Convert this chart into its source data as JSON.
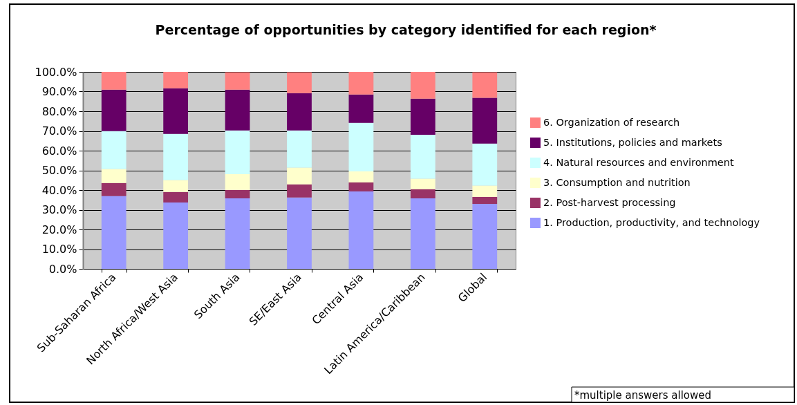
{
  "chart_data": {
    "type": "bar",
    "title": "Percentage of opportunities by category identified for each region*",
    "categories": [
      "Sub-Saharan Africa",
      "North Africa/West Asia",
      "South Asia",
      "SE/East Asia",
      "Central Asia",
      "Latin America/Caribbean",
      "Global"
    ],
    "stacked": true,
    "series": [
      {
        "name": "1. Production, productivity, and technology",
        "color": "#9999ff",
        "values": [
          36.9,
          33.7,
          35.8,
          36.2,
          39.3,
          35.8,
          33.0
        ]
      },
      {
        "name": "2. Post-harvest processing",
        "color": "#993366",
        "values": [
          6.7,
          5.3,
          4.2,
          6.7,
          4.6,
          4.6,
          3.5
        ]
      },
      {
        "name": "3. Consumption and nutrition",
        "color": "#ffffcc",
        "values": [
          7.1,
          6.1,
          8.1,
          8.5,
          5.6,
          5.4,
          5.8
        ]
      },
      {
        "name": "4. Natural resources and environment",
        "color": "#ccffff",
        "values": [
          19.2,
          23.4,
          22.2,
          18.9,
          24.6,
          22.3,
          21.3
        ]
      },
      {
        "name": "5. Institutions, policies and markets",
        "color": "#660066",
        "values": [
          21.1,
          23.2,
          20.7,
          18.9,
          14.4,
          18.3,
          23.2
        ]
      },
      {
        "name": "6. Organization of research",
        "color": "#ff8080",
        "values": [
          9.0,
          8.3,
          8.8,
          10.6,
          11.5,
          13.6,
          13.0
        ]
      }
    ],
    "ylim": [
      0,
      100
    ],
    "yticks": [
      {
        "value": 0,
        "label": "0.0%"
      },
      {
        "value": 10,
        "label": "10.0%"
      },
      {
        "value": 20,
        "label": "20.0%"
      },
      {
        "value": 30,
        "label": "30.0%"
      },
      {
        "value": 40,
        "label": "40.0%"
      },
      {
        "value": 50,
        "label": "50.0%"
      },
      {
        "value": 60,
        "label": "60.0%"
      },
      {
        "value": 70,
        "label": "70.0%"
      },
      {
        "value": 80,
        "label": "80.0%"
      },
      {
        "value": 90,
        "label": "90.0%"
      },
      {
        "value": 100,
        "label": "100.0%"
      }
    ],
    "grid": "y",
    "legend": "right",
    "annotations": [
      "*multiple answers allowed"
    ]
  }
}
